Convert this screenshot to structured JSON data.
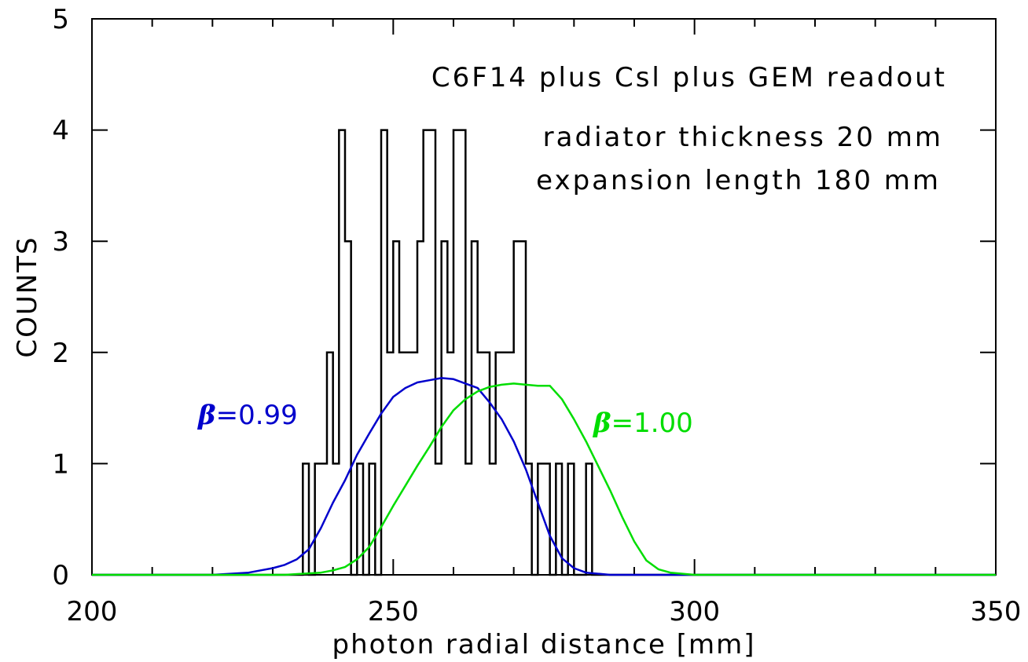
{
  "chart_data": {
    "type": "line",
    "xlabel": "photon radial distance [mm]",
    "ylabel": "COUNTS",
    "xlim": [
      200,
      350
    ],
    "ylim": [
      0,
      5
    ],
    "x_ticks": [
      200,
      250,
      300,
      350
    ],
    "y_ticks": [
      0,
      1,
      2,
      3,
      4,
      5
    ],
    "grid": false,
    "annotations": [
      "C6F14 plus Csl plus GEM readout",
      "radiator thickness 20 mm",
      "expansion length 180 mm"
    ],
    "curve_labels": [
      {
        "symbol": "β",
        "text": "=0.99",
        "color": "#0000cc"
      },
      {
        "symbol": "β",
        "text": "=1.00",
        "color": "#00dd00"
      }
    ],
    "series": [
      {
        "type": "step",
        "color": "#000000",
        "bin_width": 1,
        "bin_edges": [
          235,
          236,
          237,
          239,
          240,
          241,
          242,
          243,
          244,
          245,
          246,
          247,
          248,
          249,
          250,
          251,
          254,
          255,
          257,
          258,
          259,
          260,
          262,
          263,
          264,
          266,
          267,
          269,
          270,
          272,
          273,
          274,
          276,
          277,
          278,
          279,
          280,
          282,
          283
        ],
        "counts": [
          1,
          0,
          1,
          2,
          1,
          4,
          3,
          0,
          1,
          0,
          1,
          0,
          4,
          2,
          3,
          2,
          3,
          4,
          1,
          3,
          2,
          4,
          1,
          3,
          2,
          1,
          2,
          2,
          3,
          1,
          0,
          1,
          0,
          1,
          0,
          1,
          0,
          1,
          0
        ]
      },
      {
        "type": "line",
        "color": "#0000cc",
        "x": [
          200,
          220,
          223,
          226,
          228,
          230,
          232,
          234,
          236,
          238,
          240,
          242,
          244,
          246,
          248,
          250,
          252,
          254,
          256,
          258,
          260,
          262,
          264,
          266,
          268,
          270,
          272,
          274,
          276,
          278,
          280,
          282,
          284,
          286,
          350
        ],
        "y": [
          0,
          0,
          0.01,
          0.02,
          0.04,
          0.06,
          0.09,
          0.14,
          0.23,
          0.42,
          0.65,
          0.85,
          1.08,
          1.27,
          1.45,
          1.6,
          1.68,
          1.73,
          1.75,
          1.77,
          1.76,
          1.72,
          1.68,
          1.55,
          1.4,
          1.2,
          0.95,
          0.65,
          0.35,
          0.15,
          0.06,
          0.02,
          0.01,
          0,
          0
        ]
      },
      {
        "type": "line",
        "color": "#00dd00",
        "x": [
          200,
          232,
          235,
          238,
          240,
          242,
          244,
          246,
          248,
          250,
          252,
          254,
          256,
          258,
          260,
          262,
          264,
          266,
          268,
          270,
          272,
          274,
          276,
          278,
          280,
          282,
          284,
          286,
          288,
          290,
          292,
          294,
          296,
          298,
          300,
          350
        ],
        "y": [
          0,
          0,
          0.01,
          0.02,
          0.04,
          0.07,
          0.14,
          0.25,
          0.43,
          0.62,
          0.8,
          0.98,
          1.15,
          1.33,
          1.48,
          1.58,
          1.65,
          1.69,
          1.71,
          1.72,
          1.71,
          1.7,
          1.7,
          1.58,
          1.4,
          1.2,
          0.98,
          0.76,
          0.52,
          0.3,
          0.13,
          0.05,
          0.02,
          0.01,
          0,
          0
        ]
      }
    ]
  }
}
